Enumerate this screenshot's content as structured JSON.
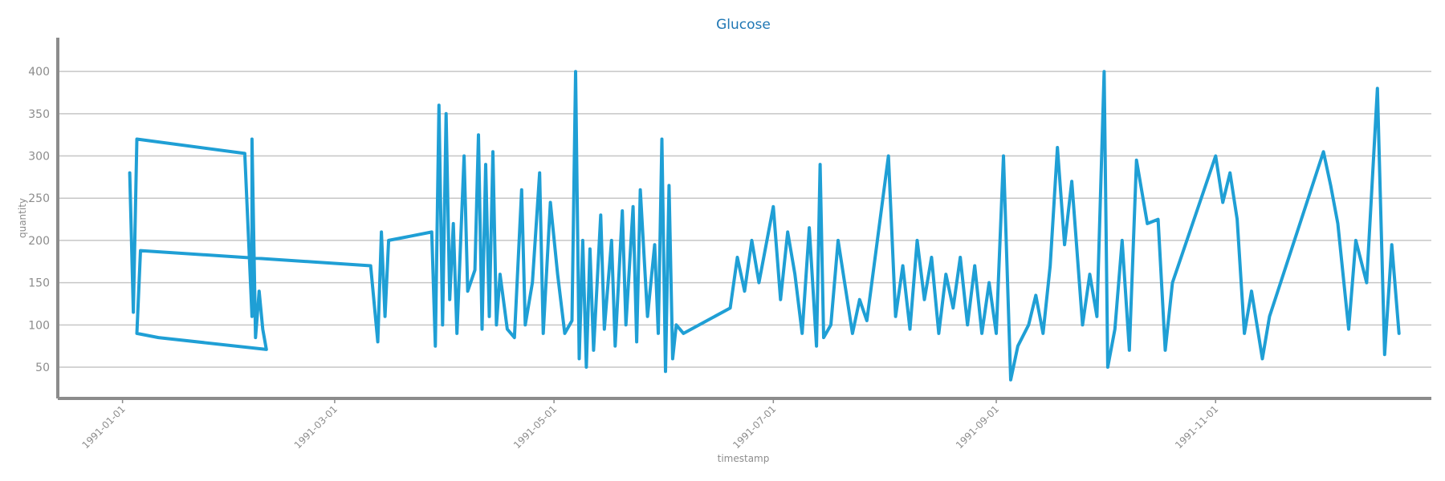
{
  "chart_data": {
    "type": "line",
    "title": "Glucose",
    "xlabel": "timestamp",
    "ylabel": "quantity",
    "x_ticks": [
      "1991-01-01",
      "1991-03-01",
      "1991-05-01",
      "1991-07-01",
      "1991-09-01",
      "1991-11-01"
    ],
    "y_ticks": [
      50,
      100,
      150,
      200,
      250,
      300,
      350,
      400
    ],
    "xlim": [
      "1990-12-14",
      "1991-12-31"
    ],
    "ylim": [
      13,
      440
    ],
    "grid": "horizontal",
    "color": "#1f9fd5",
    "series": [
      {
        "name": "",
        "points": [
          [
            "1991-01-03",
            280
          ],
          [
            "1991-01-04",
            115
          ],
          [
            "1991-01-05",
            320
          ],
          [
            "1991-02-04",
            303
          ],
          [
            "1991-02-06",
            110
          ],
          [
            "1991-02-06",
            320
          ],
          [
            "1991-02-07",
            85
          ],
          [
            "1991-02-08",
            140
          ],
          [
            "1991-02-09",
            95
          ],
          [
            "1991-02-10",
            71
          ],
          [
            "1991-01-11",
            85
          ],
          [
            "1991-01-05",
            90
          ],
          [
            "1991-01-06",
            188
          ],
          [
            "1991-03-11",
            170
          ],
          [
            "1991-03-13",
            80
          ],
          [
            "1991-03-14",
            210
          ],
          [
            "1991-03-15",
            110
          ],
          [
            "1991-03-16",
            200
          ],
          [
            "1991-03-28",
            210
          ],
          [
            "1991-03-29",
            75
          ],
          [
            "1991-03-30",
            360
          ],
          [
            "1991-03-31",
            100
          ],
          [
            "1991-04-01",
            350
          ],
          [
            "1991-04-02",
            130
          ],
          [
            "1991-04-03",
            220
          ],
          [
            "1991-04-04",
            90
          ],
          [
            "1991-04-06",
            300
          ],
          [
            "1991-04-07",
            140
          ],
          [
            "1991-04-09",
            165
          ],
          [
            "1991-04-10",
            325
          ],
          [
            "1991-04-11",
            95
          ],
          [
            "1991-04-12",
            290
          ],
          [
            "1991-04-13",
            110
          ],
          [
            "1991-04-14",
            305
          ],
          [
            "1991-04-15",
            100
          ],
          [
            "1991-04-16",
            160
          ],
          [
            "1991-04-18",
            95
          ],
          [
            "1991-04-20",
            85
          ],
          [
            "1991-04-22",
            260
          ],
          [
            "1991-04-23",
            100
          ],
          [
            "1991-04-25",
            150
          ],
          [
            "1991-04-27",
            280
          ],
          [
            "1991-04-28",
            90
          ],
          [
            "1991-04-30",
            245
          ],
          [
            "1991-05-02",
            160
          ],
          [
            "1991-05-04",
            90
          ],
          [
            "1991-05-06",
            105
          ],
          [
            "1991-05-07",
            400
          ],
          [
            "1991-05-08",
            60
          ],
          [
            "1991-05-09",
            200
          ],
          [
            "1991-05-10",
            50
          ],
          [
            "1991-05-11",
            190
          ],
          [
            "1991-05-12",
            70
          ],
          [
            "1991-05-14",
            230
          ],
          [
            "1991-05-15",
            95
          ],
          [
            "1991-05-17",
            200
          ],
          [
            "1991-05-18",
            75
          ],
          [
            "1991-05-20",
            235
          ],
          [
            "1991-05-21",
            100
          ],
          [
            "1991-05-23",
            240
          ],
          [
            "1991-05-24",
            80
          ],
          [
            "1991-05-25",
            260
          ],
          [
            "1991-05-27",
            110
          ],
          [
            "1991-05-29",
            195
          ],
          [
            "1991-05-30",
            90
          ],
          [
            "1991-05-31",
            320
          ],
          [
            "1991-06-01",
            45
          ],
          [
            "1991-06-02",
            265
          ],
          [
            "1991-06-03",
            60
          ],
          [
            "1991-06-04",
            100
          ],
          [
            "1991-06-06",
            90
          ],
          [
            "1991-06-19",
            120
          ],
          [
            "1991-06-21",
            180
          ],
          [
            "1991-06-23",
            140
          ],
          [
            "1991-06-25",
            200
          ],
          [
            "1991-06-27",
            150
          ],
          [
            "1991-07-01",
            240
          ],
          [
            "1991-07-03",
            130
          ],
          [
            "1991-07-05",
            210
          ],
          [
            "1991-07-07",
            160
          ],
          [
            "1991-07-09",
            90
          ],
          [
            "1991-07-11",
            215
          ],
          [
            "1991-07-13",
            75
          ],
          [
            "1991-07-14",
            290
          ],
          [
            "1991-07-15",
            85
          ],
          [
            "1991-07-17",
            100
          ],
          [
            "1991-07-19",
            200
          ],
          [
            "1991-07-23",
            90
          ],
          [
            "1991-07-25",
            130
          ],
          [
            "1991-07-27",
            105
          ],
          [
            "1991-08-02",
            300
          ],
          [
            "1991-08-04",
            110
          ],
          [
            "1991-08-06",
            170
          ],
          [
            "1991-08-08",
            95
          ],
          [
            "1991-08-10",
            200
          ],
          [
            "1991-08-12",
            130
          ],
          [
            "1991-08-14",
            180
          ],
          [
            "1991-08-16",
            90
          ],
          [
            "1991-08-18",
            160
          ],
          [
            "1991-08-20",
            120
          ],
          [
            "1991-08-22",
            180
          ],
          [
            "1991-08-24",
            100
          ],
          [
            "1991-08-26",
            170
          ],
          [
            "1991-08-28",
            90
          ],
          [
            "1991-08-30",
            150
          ],
          [
            "1991-09-01",
            90
          ],
          [
            "1991-09-03",
            300
          ],
          [
            "1991-09-05",
            35
          ],
          [
            "1991-09-07",
            75
          ],
          [
            "1991-09-10",
            100
          ],
          [
            "1991-09-12",
            135
          ],
          [
            "1991-09-14",
            90
          ],
          [
            "1991-09-16",
            170
          ],
          [
            "1991-09-18",
            310
          ],
          [
            "1991-09-20",
            195
          ],
          [
            "1991-09-22",
            270
          ],
          [
            "1991-09-25",
            100
          ],
          [
            "1991-09-27",
            160
          ],
          [
            "1991-09-29",
            110
          ],
          [
            "1991-10-01",
            400
          ],
          [
            "1991-10-02",
            50
          ],
          [
            "1991-10-04",
            95
          ],
          [
            "1991-10-06",
            200
          ],
          [
            "1991-10-08",
            70
          ],
          [
            "1991-10-10",
            295
          ],
          [
            "1991-10-13",
            220
          ],
          [
            "1991-10-16",
            225
          ],
          [
            "1991-10-18",
            70
          ],
          [
            "1991-10-20",
            150
          ],
          [
            "1991-11-01",
            300
          ],
          [
            "1991-11-03",
            245
          ],
          [
            "1991-11-05",
            280
          ],
          [
            "1991-11-07",
            225
          ],
          [
            "1991-11-09",
            90
          ],
          [
            "1991-11-11",
            140
          ],
          [
            "1991-11-14",
            60
          ],
          [
            "1991-11-16",
            110
          ],
          [
            "1991-12-01",
            305
          ],
          [
            "1991-12-03",
            265
          ],
          [
            "1991-12-05",
            220
          ],
          [
            "1991-12-08",
            95
          ],
          [
            "1991-12-10",
            200
          ],
          [
            "1991-12-13",
            150
          ],
          [
            "1991-12-16",
            380
          ],
          [
            "1991-12-18",
            65
          ],
          [
            "1991-12-20",
            195
          ],
          [
            "1991-12-22",
            90
          ]
        ]
      }
    ]
  }
}
